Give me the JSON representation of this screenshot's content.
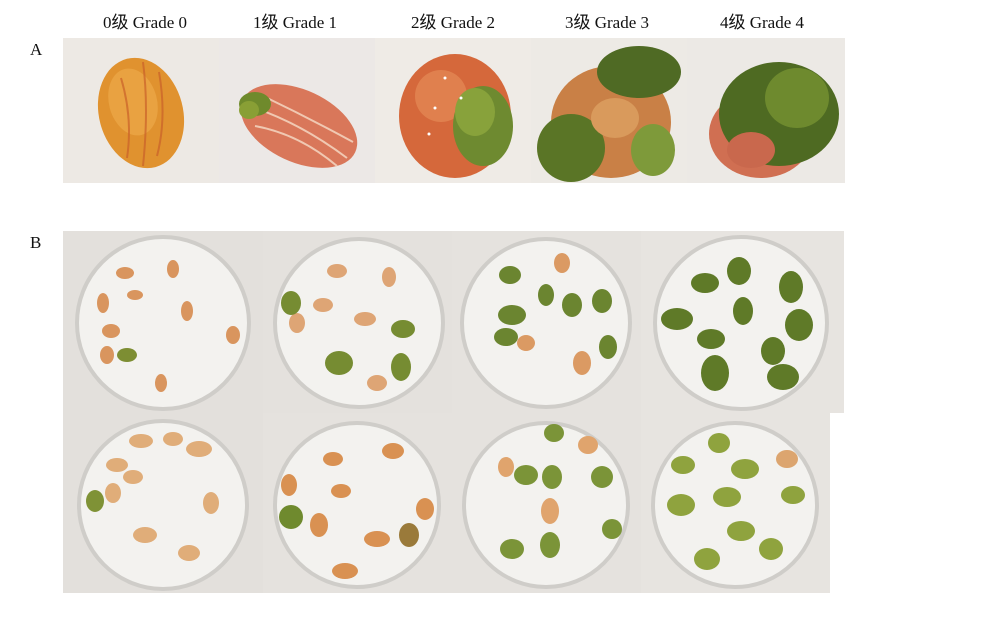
{
  "grade_labels": [
    "0级 Grade 0",
    "1级 Grade 1",
    "2级 Grade 2",
    "3级 Grade 3",
    "4级 Grade 4"
  ],
  "panel_labels": {
    "a": "A",
    "b": "B"
  }
}
